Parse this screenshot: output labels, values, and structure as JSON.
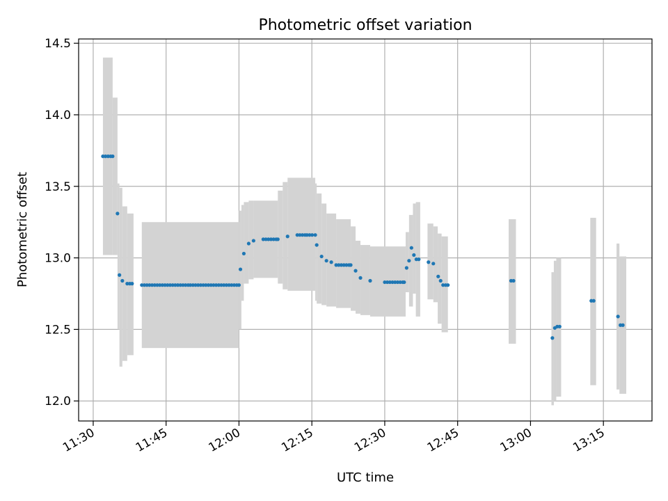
{
  "chart_data": {
    "type": "scatter",
    "title": "Photometric offset variation",
    "xlabel": "UTC time",
    "ylabel": "Photometric offset",
    "x_unit": "UTC HH:MM",
    "xlim": [
      "11:27",
      "13:25"
    ],
    "ylim": [
      11.86,
      14.53
    ],
    "x_ticks": [
      "11:30",
      "11:45",
      "12:00",
      "12:15",
      "12:30",
      "12:45",
      "13:00",
      "13:15"
    ],
    "y_ticks": [
      "12.0",
      "12.5",
      "13.0",
      "13.5",
      "14.0",
      "14.5"
    ],
    "grid": true,
    "point_color": "#1f77b4",
    "band_color": "#d3d3d3",
    "series": [
      {
        "points": [
          [
            "11:32",
            13.71
          ],
          [
            "11:34",
            13.71
          ],
          [
            "11:35",
            13.31
          ],
          [
            "11:35.4",
            12.88
          ],
          [
            "11:36",
            12.84
          ],
          [
            "11:37",
            12.82
          ],
          [
            "11:38",
            12.82
          ],
          [
            "11:40",
            12.81
          ],
          [
            "11:50",
            12.81
          ],
          [
            "12:00",
            12.81
          ],
          [
            "12:00.3",
            12.92
          ],
          [
            "12:01",
            13.03
          ],
          [
            "12:02",
            13.1
          ],
          [
            "12:03",
            13.12
          ],
          [
            "12:05",
            13.13
          ],
          [
            "12:08",
            13.13
          ],
          [
            "12:10",
            13.15
          ],
          [
            "12:12",
            13.16
          ],
          [
            "12:14",
            13.16
          ],
          [
            "12:15.7",
            13.16
          ],
          [
            "12:16",
            13.09
          ],
          [
            "12:17",
            13.01
          ],
          [
            "12:18",
            12.98
          ],
          [
            "12:19",
            12.97
          ],
          [
            "12:20",
            12.95
          ],
          [
            "12:23",
            12.95
          ],
          [
            "12:24",
            12.91
          ],
          [
            "12:25",
            12.86
          ],
          [
            "12:27",
            12.84
          ],
          [
            "12:30",
            12.83
          ],
          [
            "12:34",
            12.83
          ],
          [
            "12:34.5",
            12.93
          ],
          [
            "12:35",
            12.98
          ],
          [
            "12:35.5",
            13.07
          ],
          [
            "12:36",
            13.02
          ],
          [
            "12:36.5",
            12.99
          ],
          [
            "12:37",
            12.99
          ],
          [
            "12:39",
            12.97
          ],
          [
            "12:40",
            12.96
          ],
          [
            "12:41",
            12.87
          ],
          [
            "12:41.5",
            12.84
          ],
          [
            "12:42",
            12.81
          ],
          [
            "12:43",
            12.81
          ],
          [
            "12:56",
            12.84
          ],
          [
            "12:56.5",
            12.84
          ],
          [
            "13:04.5",
            12.44
          ],
          [
            "13:05",
            12.51
          ],
          [
            "13:05.5",
            12.52
          ],
          [
            "13:06",
            12.52
          ],
          [
            "13:12.5",
            12.7
          ],
          [
            "13:13",
            12.7
          ],
          [
            "13:18",
            12.59
          ],
          [
            "13:18.5",
            12.53
          ],
          [
            "13:19",
            12.53
          ]
        ]
      }
    ],
    "bands": [
      {
        "x": [
          "11:32",
          "11:34"
        ],
        "low": 13.02,
        "high": 14.4
      },
      {
        "x": [
          "11:34",
          "11:35"
        ],
        "low": 13.02,
        "high": 14.12
      },
      {
        "x": [
          "11:35",
          "11:35.4"
        ],
        "low": 12.5,
        "high": 13.52
      },
      {
        "x": [
          "11:35.4",
          "11:36"
        ],
        "low": 12.24,
        "high": 13.49
      },
      {
        "x": [
          "11:36",
          "11:37"
        ],
        "low": 12.28,
        "high": 13.36
      },
      {
        "x": [
          "11:37",
          "11:38.3"
        ],
        "low": 12.32,
        "high": 13.31
      },
      {
        "x": [
          "11:40",
          "12:00"
        ],
        "low": 12.37,
        "high": 13.25
      },
      {
        "x": [
          "12:00",
          "12:00.5"
        ],
        "low": 12.5,
        "high": 13.33
      },
      {
        "x": [
          "12:00.5",
          "12:01"
        ],
        "low": 12.7,
        "high": 13.37
      },
      {
        "x": [
          "12:01",
          "12:02"
        ],
        "low": 12.82,
        "high": 13.39
      },
      {
        "x": [
          "12:02",
          "12:03"
        ],
        "low": 12.85,
        "high": 13.4
      },
      {
        "x": [
          "12:03",
          "12:08"
        ],
        "low": 12.86,
        "high": 13.4
      },
      {
        "x": [
          "12:08",
          "12:09"
        ],
        "low": 12.82,
        "high": 13.47
      },
      {
        "x": [
          "12:09",
          "12:10"
        ],
        "low": 12.78,
        "high": 13.53
      },
      {
        "x": [
          "12:10",
          "12:15.7"
        ],
        "low": 12.77,
        "high": 13.56
      },
      {
        "x": [
          "12:15.7",
          "12:16"
        ],
        "low": 12.7,
        "high": 13.52
      },
      {
        "x": [
          "12:16",
          "12:17"
        ],
        "low": 12.68,
        "high": 13.45
      },
      {
        "x": [
          "12:17",
          "12:18"
        ],
        "low": 12.67,
        "high": 13.38
      },
      {
        "x": [
          "12:18",
          "12:20"
        ],
        "low": 12.66,
        "high": 13.31
      },
      {
        "x": [
          "12:20",
          "12:23"
        ],
        "low": 12.65,
        "high": 13.27
      },
      {
        "x": [
          "12:23",
          "12:24"
        ],
        "low": 12.63,
        "high": 13.22
      },
      {
        "x": [
          "12:24",
          "12:25"
        ],
        "low": 12.61,
        "high": 13.12
      },
      {
        "x": [
          "12:25",
          "12:27"
        ],
        "low": 12.6,
        "high": 13.09
      },
      {
        "x": [
          "12:27",
          "12:34.3"
        ],
        "low": 12.59,
        "high": 13.08
      },
      {
        "x": [
          "12:34.3",
          "12:35"
        ],
        "low": 12.76,
        "high": 13.18
      },
      {
        "x": [
          "12:35",
          "12:35.8"
        ],
        "low": 12.66,
        "high": 13.3
      },
      {
        "x": [
          "12:35.8",
          "12:36.4"
        ],
        "low": 12.75,
        "high": 13.38
      },
      {
        "x": [
          "12:36.4",
          "12:37.3"
        ],
        "low": 12.59,
        "high": 13.39
      },
      {
        "x": [
          "12:38.8",
          "12:40"
        ],
        "low": 12.71,
        "high": 13.24
      },
      {
        "x": [
          "12:40",
          "12:40.9"
        ],
        "low": 12.69,
        "high": 13.22
      },
      {
        "x": [
          "12:40.9",
          "12:41.7"
        ],
        "low": 12.54,
        "high": 13.17
      },
      {
        "x": [
          "12:41.7",
          "12:43"
        ],
        "low": 12.48,
        "high": 13.15
      },
      {
        "x": [
          "12:55.5",
          "12:57"
        ],
        "low": 12.4,
        "high": 13.27
      },
      {
        "x": [
          "13:04.3",
          "13:04.8"
        ],
        "low": 11.97,
        "high": 12.9
      },
      {
        "x": [
          "13:04.8",
          "13:05.3"
        ],
        "low": 12.0,
        "high": 12.98
      },
      {
        "x": [
          "13:05.3",
          "13:06.3"
        ],
        "low": 12.03,
        "high": 13.0
      },
      {
        "x": [
          "13:12.3",
          "13:13.5"
        ],
        "low": 12.11,
        "high": 13.28
      },
      {
        "x": [
          "13:17.7",
          "13:18.3"
        ],
        "low": 12.08,
        "high": 13.1
      },
      {
        "x": [
          "13:18.3",
          "13:19.7"
        ],
        "low": 12.05,
        "high": 13.01
      }
    ]
  }
}
